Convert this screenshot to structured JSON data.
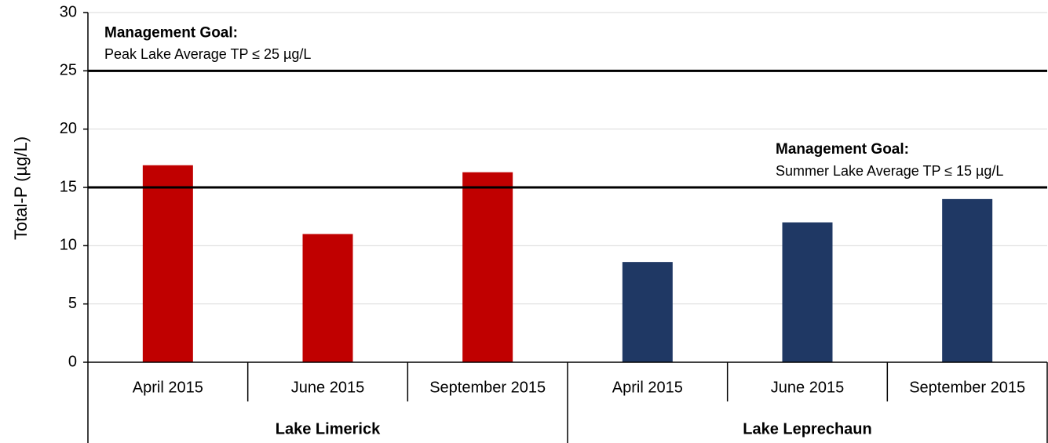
{
  "chart_data": {
    "type": "bar",
    "y_axis_label": "Total-P (µg/L)",
    "ylim": [
      0,
      30
    ],
    "yticks": [
      0,
      5,
      10,
      15,
      20,
      25,
      30
    ],
    "grid": true,
    "groups": [
      {
        "name": "Lake Limerick",
        "color": "#c00000",
        "categories": [
          "April 2015",
          "June 2015",
          "September 2015"
        ],
        "values": [
          16.9,
          11.0,
          16.3
        ]
      },
      {
        "name": "Lake Leprechaun",
        "color": "#1f3864",
        "categories": [
          "April 2015",
          "June 2015",
          "September 2015"
        ],
        "values": [
          8.6,
          12.0,
          14.0
        ]
      }
    ],
    "reference_lines": [
      {
        "value": 25,
        "title": "Management Goal:",
        "label": "Peak Lake Average TP ≤ 25 µg/L"
      },
      {
        "value": 15,
        "title": "Management Goal:",
        "label": "Summer Lake Average TP ≤ 15 µg/L"
      }
    ]
  }
}
